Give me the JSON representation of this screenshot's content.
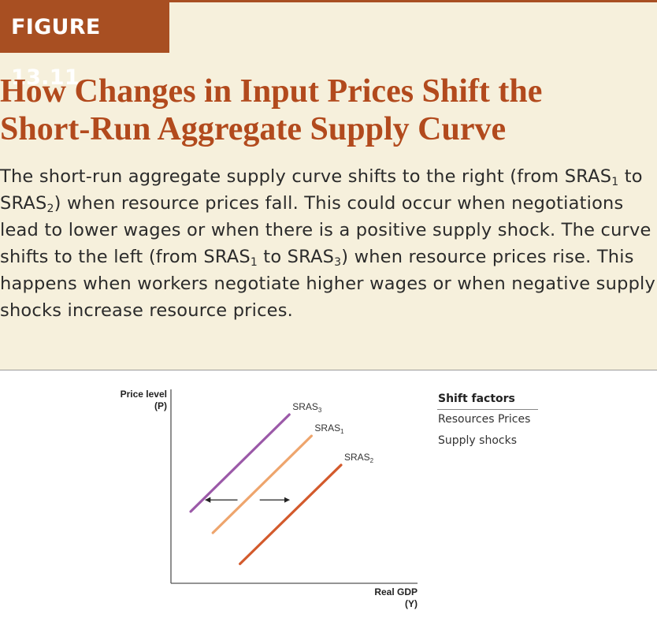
{
  "figure_label": "FIGURE 13.11",
  "title": "How Changes in Input Prices Shift the Short-Run Aggregate Supply Curve",
  "caption": "The short-run aggregate supply curve shifts to the right (from SRAS₁ to SRAS₂) when resource prices fall. This could occur when negotiations lead to lower wages or when there is a positive supply shock. The curve shifts to the left (from SRAS₁ to SRAS₃) when resource prices rise. This happens when workers negotiate higher wages or when negative supply shocks increase resource prices.",
  "legend": {
    "title": "Shift factors",
    "items": [
      "Resources Prices",
      "Supply shocks"
    ]
  },
  "colors": {
    "accent": "#a84f22",
    "background": "#f6f0dc",
    "sras1": "#eea56d",
    "sras2": "#d35a2c",
    "sras3": "#9b59a8"
  },
  "chart_data": {
    "type": "line",
    "title": "",
    "xlabel": "Real GDP\n(Y)",
    "ylabel": "Price level\n(P)",
    "xlim": [
      0,
      100
    ],
    "ylim": [
      0,
      100
    ],
    "grid": false,
    "ticks": false,
    "series": [
      {
        "name": "SRAS₃",
        "label": "SRAS",
        "sub": "3",
        "color": "#9b59a8",
        "x": [
          8,
          48
        ],
        "y": [
          37,
          87
        ]
      },
      {
        "name": "SRAS₁",
        "label": "SRAS",
        "sub": "1",
        "color": "#eea56d",
        "x": [
          17,
          57
        ],
        "y": [
          26,
          76
        ]
      },
      {
        "name": "SRAS₂",
        "label": "SRAS",
        "sub": "2",
        "color": "#d35a2c",
        "x": [
          28,
          69
        ],
        "y": [
          10,
          61
        ]
      }
    ],
    "arrows": [
      {
        "direction": "left",
        "x": [
          27,
          14
        ],
        "y": [
          43,
          43
        ]
      },
      {
        "direction": "right",
        "x": [
          36,
          48
        ],
        "y": [
          43,
          43
        ]
      }
    ]
  }
}
